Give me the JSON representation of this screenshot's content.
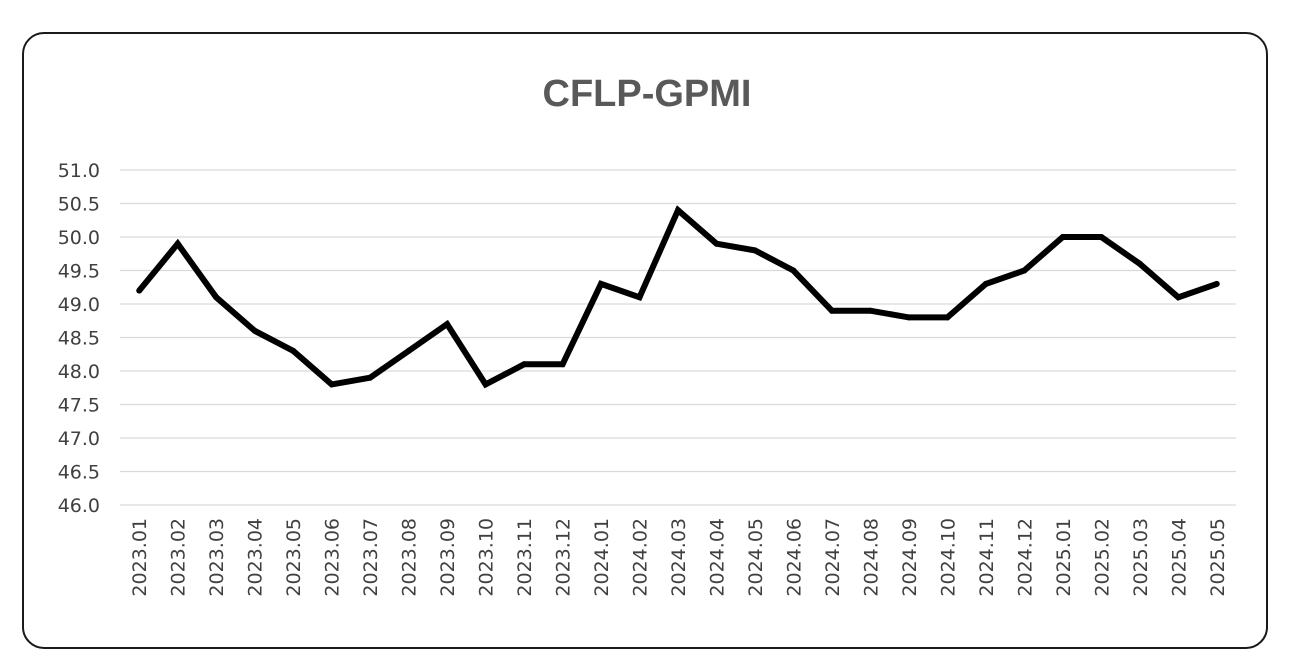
{
  "chart_data": {
    "type": "line",
    "title": "CFLP-GPMI",
    "xlabel": "",
    "ylabel": "",
    "categories": [
      "2023.01",
      "2023.02",
      "2023.03",
      "2023.04",
      "2023.05",
      "2023.06",
      "2023.07",
      "2023.08",
      "2023.09",
      "2023.10",
      "2023.11",
      "2023.12",
      "2024.01",
      "2024.02",
      "2024.03",
      "2024.04",
      "2024.05",
      "2024.06",
      "2024.07",
      "2024.08",
      "2024.09",
      "2024.10",
      "2024.11",
      "2024.12",
      "2025.01",
      "2025.02",
      "2025.03",
      "2025.04",
      "2025.05"
    ],
    "series": [
      {
        "values": [
          49.2,
          49.9,
          49.1,
          48.6,
          48.3,
          47.8,
          47.9,
          48.3,
          48.7,
          47.8,
          48.1,
          48.1,
          49.3,
          49.1,
          50.4,
          49.9,
          49.8,
          49.5,
          48.9,
          48.9,
          48.8,
          48.8,
          49.3,
          49.5,
          50.0,
          50.0,
          49.6,
          49.1,
          49.3
        ],
        "color": "#000000"
      }
    ],
    "yticks": [
      "46.0",
      "46.5",
      "47.0",
      "47.5",
      "48.0",
      "48.5",
      "49.0",
      "49.5",
      "50.0",
      "50.5",
      "51.0"
    ],
    "ylim": [
      46.0,
      51.0
    ],
    "grid": "horizontal",
    "legend": "none"
  }
}
